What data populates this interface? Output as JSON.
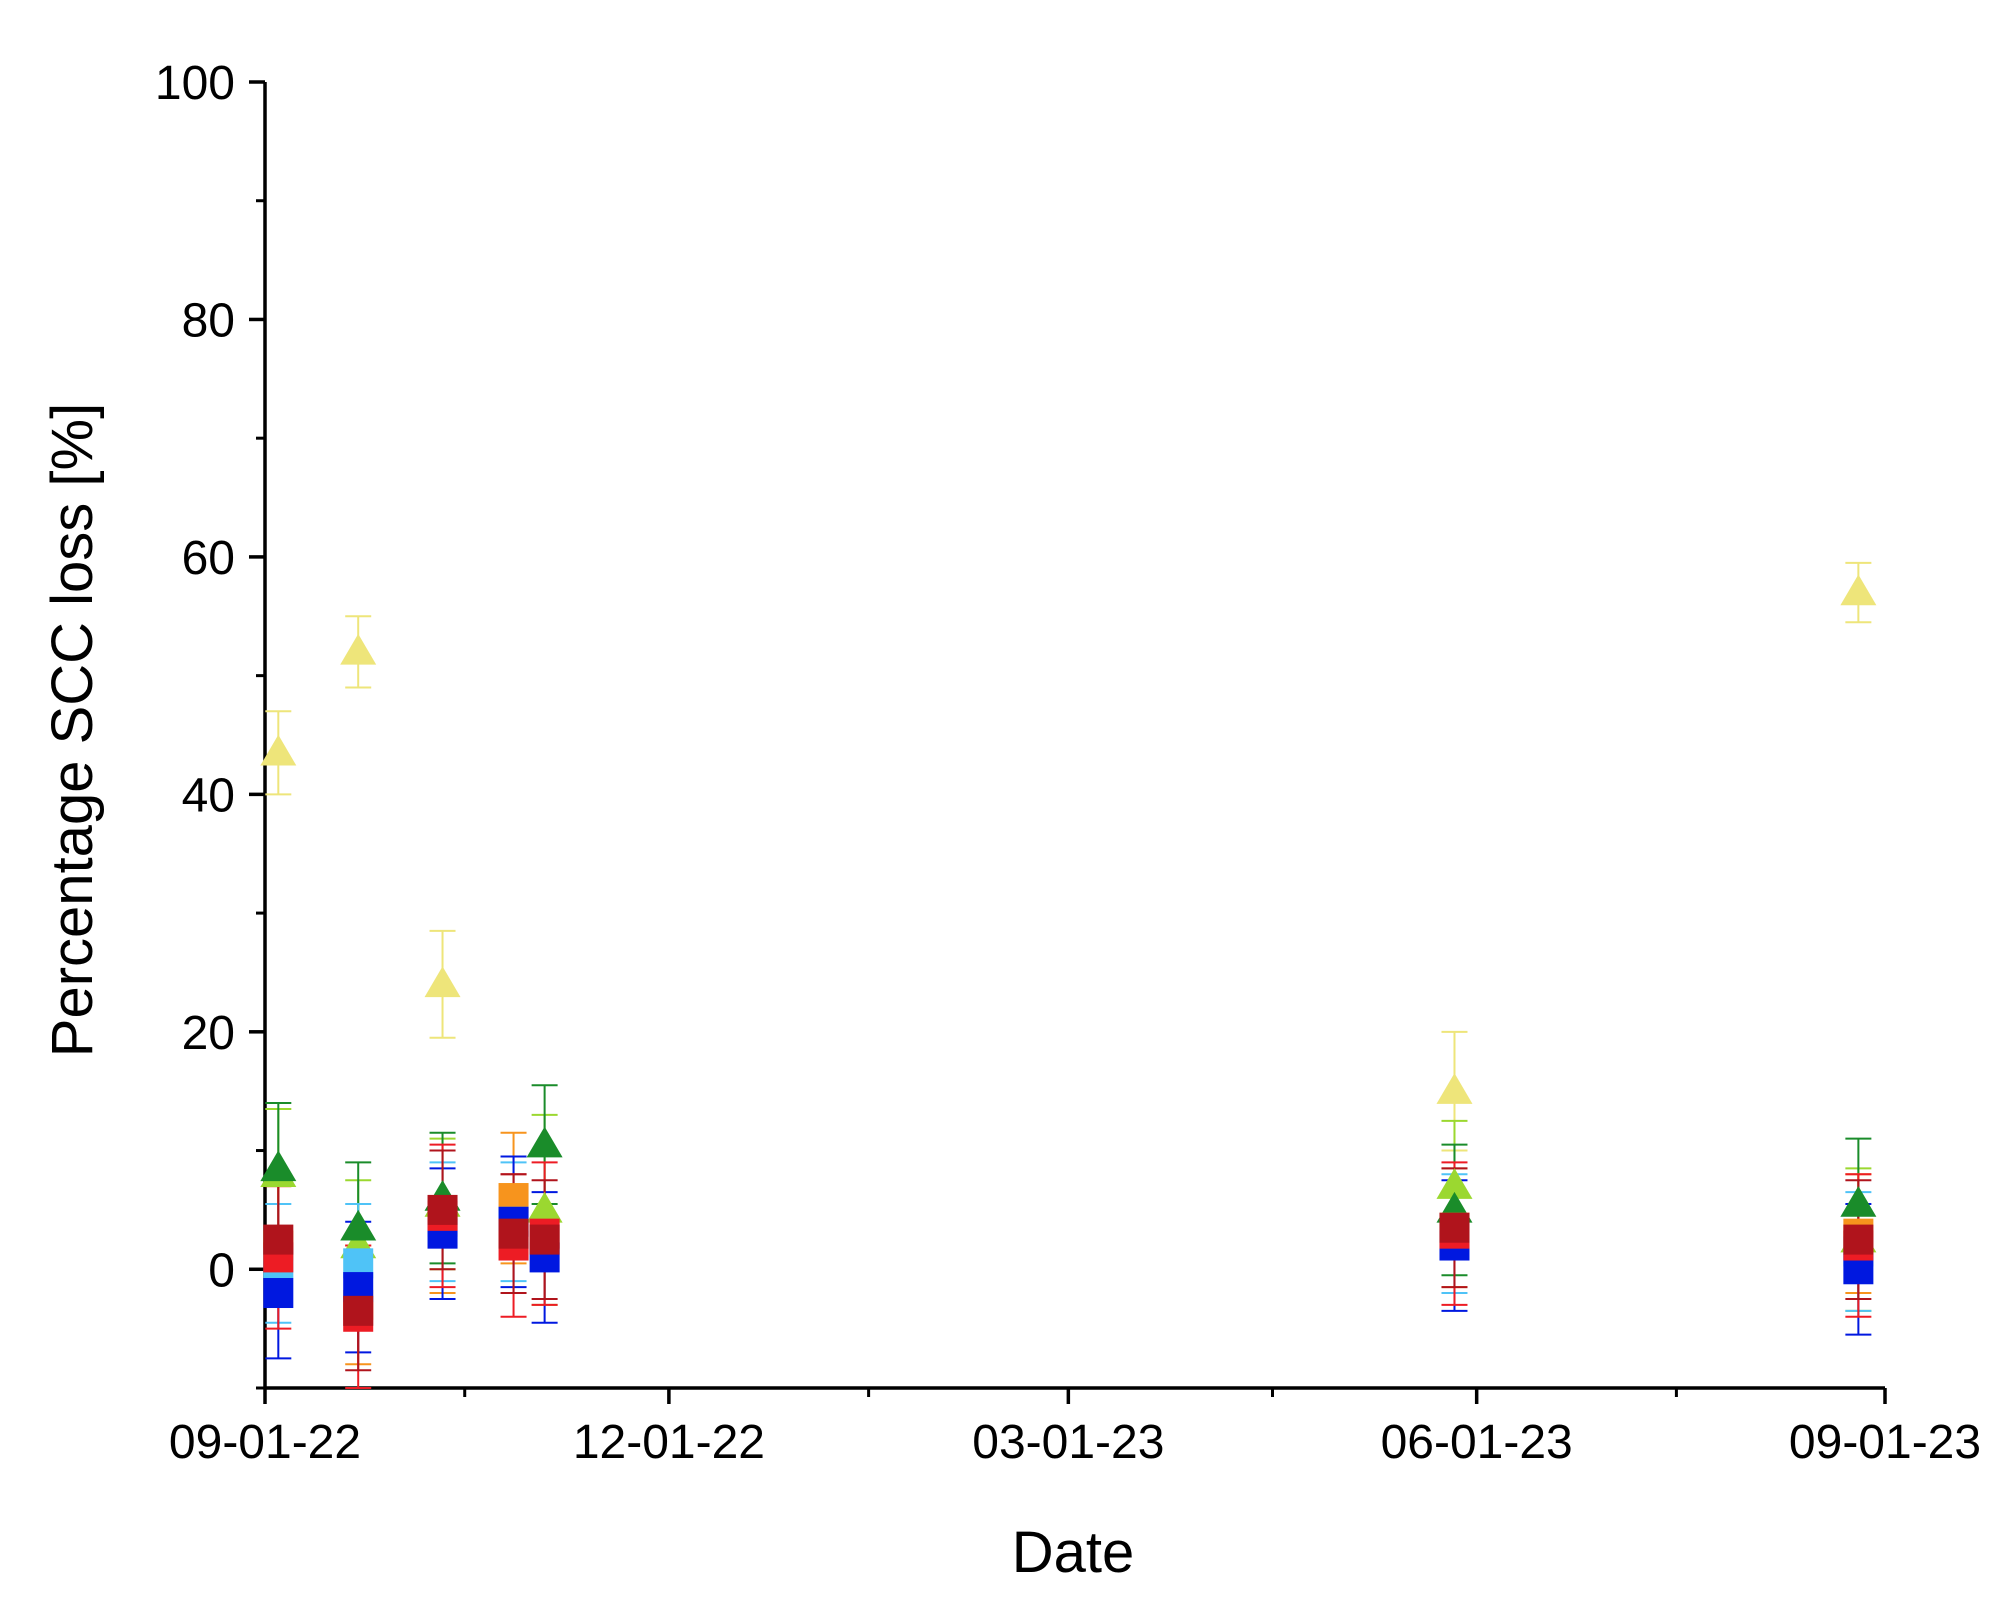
{
  "chart_data": {
    "type": "scatter",
    "title": "",
    "xlabel": "Date",
    "ylabel": "Percentage SCC loss [%]",
    "x_axis_type": "date",
    "xlim": [
      "2022-09-01",
      "2023-09-01"
    ],
    "ylim": [
      -10,
      100
    ],
    "x_tick_labels": [
      "09-01-22",
      "12-01-22",
      "03-01-23",
      "06-01-23",
      "09-01-23"
    ],
    "x_tick_dates": [
      "2022-09-01",
      "2022-12-01",
      "2023-03-01",
      "2023-06-01",
      "2023-09-01"
    ],
    "x_minor_tick_dates": [
      "2022-10-16",
      "2023-01-15",
      "2023-04-16",
      "2023-07-16"
    ],
    "y_tick_labels": [
      "0",
      "20",
      "40",
      "60",
      "80",
      "100"
    ],
    "y_ticks": [
      0,
      20,
      40,
      60,
      80,
      100
    ],
    "y_minor_step": 10,
    "grid": false,
    "legend": "none",
    "error_bars": true,
    "series": [
      {
        "marker": "triangle",
        "color": "#eee57a",
        "x": [
          "2022-09-04",
          "2022-09-22",
          "2022-10-11",
          "2023-05-27",
          "2023-08-26"
        ],
        "y": [
          43.5,
          52,
          24,
          15,
          57
        ],
        "err": [
          3.5,
          3,
          4.5,
          5,
          2.5
        ]
      },
      {
        "marker": "triangle",
        "color": "#9bd830",
        "x": [
          "2022-09-04",
          "2022-09-22",
          "2022-10-11",
          "2022-11-03",
          "2023-05-27",
          "2023-08-26"
        ],
        "y": [
          8,
          2,
          5.5,
          5,
          7,
          2.5
        ],
        "err": [
          5.5,
          5.5,
          5.5,
          8,
          5.5,
          6
        ]
      },
      {
        "marker": "triangle",
        "color": "#1a8c2a",
        "x": [
          "2022-09-04",
          "2022-09-22",
          "2022-10-11",
          "2022-11-03",
          "2023-05-27",
          "2023-08-26"
        ],
        "y": [
          8.5,
          3.5,
          6,
          10.5,
          5,
          5.5
        ],
        "err": [
          5.5,
          5.5,
          5.5,
          5,
          5.5,
          5.5
        ]
      },
      {
        "marker": "square",
        "color": "#f7941d",
        "x": [
          "2022-09-04",
          "2022-09-22",
          "2022-10-11",
          "2022-10-27",
          "2023-05-27",
          "2023-08-26"
        ],
        "y": [
          2,
          -3,
          4,
          6,
          3.5,
          3
        ],
        "err": [
          5,
          5,
          6,
          5.5,
          5,
          5
        ]
      },
      {
        "marker": "square",
        "color": "#4fc3f7",
        "x": [
          "2022-09-04",
          "2022-09-22",
          "2022-10-11",
          "2022-10-27",
          "2023-05-27",
          "2023-08-26"
        ],
        "y": [
          0.5,
          0.5,
          4,
          4,
          3,
          1.5
        ],
        "err": [
          5,
          5,
          5,
          5,
          5,
          5
        ]
      },
      {
        "marker": "square",
        "color": "#0018e0",
        "x": [
          "2022-09-04",
          "2022-09-22",
          "2022-10-11",
          "2022-10-27",
          "2022-11-03",
          "2023-05-27",
          "2023-08-26"
        ],
        "y": [
          -2,
          -1.5,
          3,
          4,
          1,
          2,
          0
        ],
        "err": [
          5.5,
          5.5,
          5.5,
          5.5,
          5.5,
          5.5,
          5.5
        ]
      },
      {
        "marker": "square",
        "color": "#ed1c24",
        "x": [
          "2022-09-04",
          "2022-09-22",
          "2022-10-11",
          "2022-10-27",
          "2022-11-03",
          "2023-05-27",
          "2023-08-26"
        ],
        "y": [
          1,
          -4,
          4.5,
          2,
          3,
          3,
          2
        ],
        "err": [
          6,
          6,
          6,
          6,
          6,
          6,
          6
        ]
      },
      {
        "marker": "square",
        "color": "#b0141c",
        "x": [
          "2022-09-04",
          "2022-09-22",
          "2022-10-11",
          "2022-10-27",
          "2022-11-03",
          "2023-05-27",
          "2023-08-26"
        ],
        "y": [
          2.5,
          -3.5,
          5,
          3,
          2.5,
          3.5,
          2.5
        ],
        "err": [
          5,
          5,
          5,
          5,
          5,
          5,
          5
        ]
      }
    ]
  }
}
